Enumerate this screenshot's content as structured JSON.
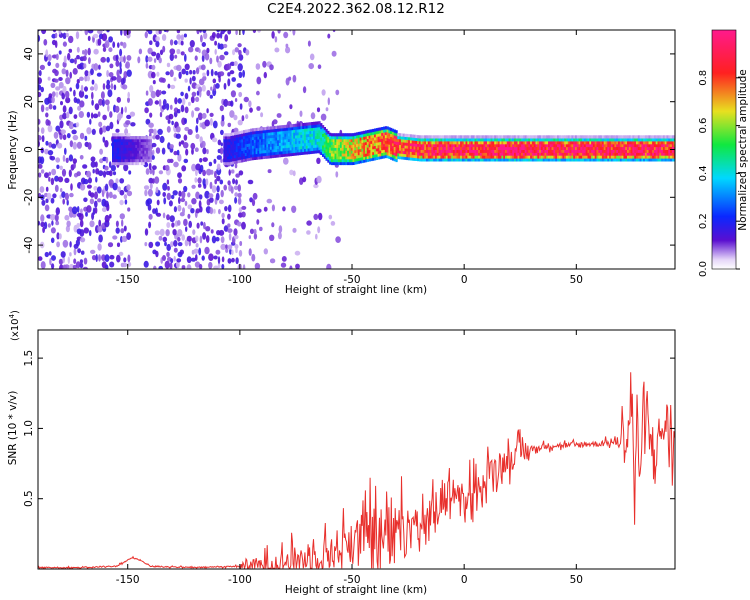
{
  "title": "C2E4.2022.362.08.12.R12",
  "chart_data": [
    {
      "type": "heatmap",
      "xlabel": "Height of straight line (km)",
      "ylabel": "Frequency (Hz)",
      "xlim": [
        -190,
        94
      ],
      "ylim": [
        -50,
        50
      ],
      "xticks": [
        -150,
        -100,
        -50,
        0,
        50
      ],
      "yticks": [
        -40,
        -20,
        0,
        20,
        40
      ],
      "colorbar": {
        "label": "Normalized spectral amplitude",
        "range": [
          0,
          1
        ],
        "ticks": [
          "0.0",
          "0.2",
          "0.4",
          "0.6",
          "0.8"
        ],
        "colors": [
          "#ffffff",
          "#5a0fd0",
          "#0a28ff",
          "#00d8ff",
          "#10e840",
          "#e8e020",
          "#ff2020",
          "#ff1a8c"
        ]
      },
      "ridge": {
        "x": [
          -155,
          -145,
          -135,
          -120,
          -105,
          -95,
          -85,
          -75,
          -65,
          -60,
          -50,
          -40,
          -35,
          -30,
          -20,
          0,
          20,
          40,
          60,
          75,
          85,
          94
        ],
        "freq_hz": [
          0,
          0,
          0,
          0,
          0,
          2,
          3,
          4,
          5,
          0,
          0,
          2,
          3,
          1,
          0,
          0,
          0,
          0,
          0,
          0,
          0,
          0
        ],
        "amplitude": [
          0.2,
          0.12,
          0.05,
          0.1,
          0.2,
          0.28,
          0.33,
          0.4,
          0.45,
          0.6,
          0.72,
          0.8,
          0.85,
          0.9,
          0.95,
          0.97,
          0.98,
          0.98,
          0.97,
          0.96,
          0.95,
          0.93
        ]
      }
    },
    {
      "type": "line",
      "xlabel": "Height of straight line (km)",
      "ylabel": "SNR (10 * v/v)",
      "multiplier": "(x10",
      "multiplier_exp": "4",
      "multiplier_close": ")",
      "xlim": [
        -190,
        94
      ],
      "ylim": [
        0,
        1.7
      ],
      "xticks": [
        -150,
        -100,
        -50,
        0,
        50
      ],
      "yticks": [
        0.5,
        1.0,
        1.5
      ],
      "ytick_labels": [
        "0.5",
        "1.0",
        "1.5"
      ],
      "series": [
        {
          "color": "#e8302c",
          "x": [
            -190,
            -170,
            -155,
            -148,
            -144,
            -140,
            -120,
            -100,
            -90,
            -80,
            -70,
            -60,
            -50,
            -45,
            -40,
            -35,
            -30,
            -25,
            -20,
            -15,
            -10,
            -5,
            0,
            5,
            10,
            15,
            20,
            25,
            30,
            35,
            40,
            45,
            50,
            55,
            60,
            65,
            70,
            73,
            75,
            76,
            77,
            78,
            80,
            85,
            90,
            94
          ],
          "y": [
            0.01,
            0.01,
            0.02,
            0.08,
            0.06,
            0.02,
            0.01,
            0.02,
            0.03,
            0.05,
            0.08,
            0.12,
            0.2,
            0.24,
            0.3,
            0.34,
            0.38,
            0.42,
            0.45,
            0.5,
            0.55,
            0.58,
            0.62,
            0.66,
            0.7,
            0.74,
            0.78,
            0.82,
            0.85,
            0.87,
            0.88,
            0.88,
            0.88,
            0.89,
            0.89,
            0.9,
            0.9,
            0.95,
            1.25,
            0.35,
            1.15,
            0.7,
            1.0,
            0.85,
            1.05,
            0.85
          ]
        }
      ]
    }
  ]
}
